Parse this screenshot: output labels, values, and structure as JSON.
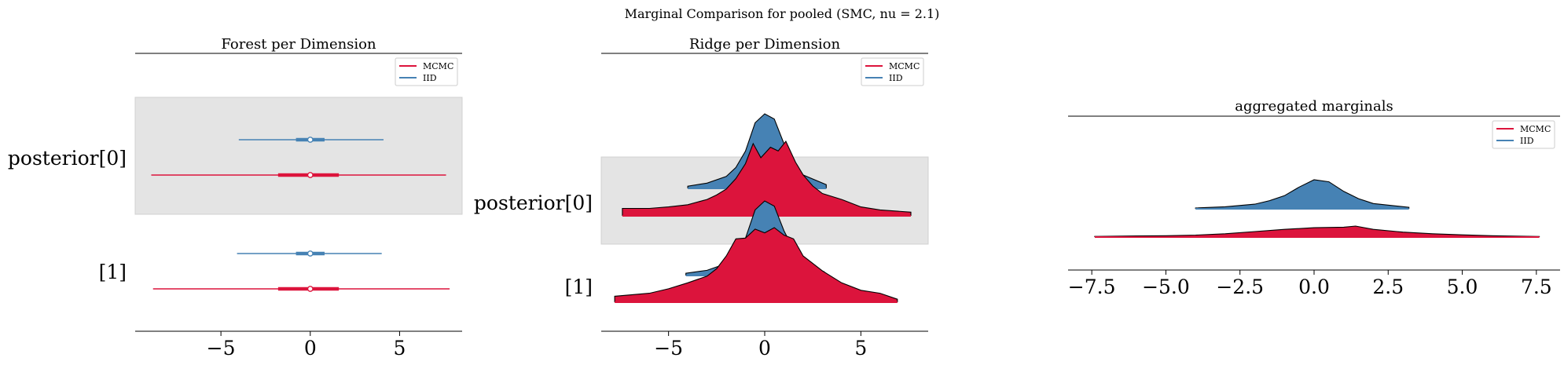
{
  "suptitle": "Marginal Comparison for pooled (SMC, nu = 2.1)",
  "colors": {
    "mcmc": "#dc143c",
    "iid": "#4682b4",
    "band": "#e4e4e4",
    "axis": "#000000"
  },
  "legend": {
    "mcmc": "MCMC",
    "iid": "IID"
  },
  "chart_data": [
    {
      "type": "forest",
      "title": "Forest per Dimension",
      "ylabels": [
        "posterior[0]",
        "[1]"
      ],
      "xlim": [
        -9.8,
        8.5
      ],
      "xticks": [
        -5,
        0,
        5
      ],
      "xtick_labels": [
        "−5",
        "0",
        "5"
      ],
      "legend_position": "top-right",
      "rows": [
        {
          "label": "posterior[0]",
          "iid": {
            "hdi": [
              -4.0,
              4.1
            ],
            "iqr": [
              -0.8,
              0.8
            ],
            "median": 0.0
          },
          "mcmc": {
            "hdi": [
              -8.9,
              7.6
            ],
            "iqr": [
              -1.8,
              1.6
            ],
            "median": 0.0
          }
        },
        {
          "label": "[1]",
          "iid": {
            "hdi": [
              -4.1,
              4.0
            ],
            "iqr": [
              -0.8,
              0.8
            ],
            "median": 0.0
          },
          "mcmc": {
            "hdi": [
              -8.8,
              7.8
            ],
            "iqr": [
              -1.8,
              1.6
            ],
            "median": 0.0
          }
        }
      ]
    },
    {
      "type": "ridge",
      "title": "Ridge per Dimension",
      "ylabels": [
        "posterior[0]",
        "[1]"
      ],
      "xlim": [
        -8.5,
        8.5
      ],
      "xticks": [
        -5,
        0,
        5
      ],
      "xtick_labels": [
        "−5",
        "0",
        "5"
      ],
      "legend_position": "top-right",
      "rows": [
        {
          "label": "posterior[0]",
          "iid": {
            "x": [
              -4.0,
              -3.0,
              -2.0,
              -1.5,
              -1.0,
              -0.5,
              0.0,
              0.5,
              1.0,
              1.5,
              2.0,
              3.2
            ],
            "density": [
              0.03,
              0.07,
              0.16,
              0.28,
              0.5,
              0.88,
              1.0,
              0.93,
              0.6,
              0.35,
              0.18,
              0.05
            ]
          },
          "mcmc": {
            "x": [
              -7.4,
              -6,
              -5,
              -4,
              -3,
              -2.5,
              -2,
              -1.5,
              -1,
              -0.6,
              -0.2,
              0.3,
              0.7,
              1.1,
              1.6,
              2,
              2.5,
              3,
              4,
              5,
              6,
              7.6
            ],
            "density": [
              0.1,
              0.1,
              0.12,
              0.15,
              0.22,
              0.28,
              0.36,
              0.5,
              0.7,
              0.97,
              0.78,
              0.92,
              0.87,
              1.0,
              0.72,
              0.55,
              0.4,
              0.3,
              0.22,
              0.12,
              0.08,
              0.05
            ]
          }
        },
        {
          "label": "[1]",
          "iid": {
            "x": [
              -4.1,
              -3.0,
              -2.0,
              -1.5,
              -1.0,
              -0.5,
              0.0,
              0.5,
              1.0,
              1.5,
              2.0,
              3.1
            ],
            "density": [
              0.03,
              0.07,
              0.16,
              0.28,
              0.5,
              0.88,
              1.0,
              0.93,
              0.6,
              0.35,
              0.18,
              0.05
            ]
          },
          "mcmc": {
            "x": [
              -7.8,
              -6,
              -5,
              -4,
              -3,
              -2.5,
              -2,
              -1.5,
              -1,
              -0.5,
              0,
              0.5,
              1,
              1.5,
              2,
              3,
              4,
              5,
              6,
              6.9
            ],
            "density": [
              0.08,
              0.12,
              0.18,
              0.26,
              0.35,
              0.45,
              0.62,
              0.85,
              0.86,
              0.98,
              0.93,
              1.0,
              0.9,
              0.85,
              0.62,
              0.42,
              0.26,
              0.16,
              0.12,
              0.04
            ]
          }
        }
      ]
    },
    {
      "type": "ridge",
      "title": "aggregated marginals",
      "xlim": [
        -8.3,
        8.3
      ],
      "xticks": [
        -7.5,
        -5.0,
        -2.5,
        0.0,
        2.5,
        5.0,
        7.5
      ],
      "xtick_labels": [
        "−7.5",
        "−5.0",
        "−2.5",
        "0.0",
        "2.5",
        "5.0",
        "7.5"
      ],
      "legend_position": "top-right",
      "rows": [
        {
          "label": "aggregated",
          "iid": {
            "x": [
              -4.0,
              -3.0,
              -2.0,
              -1.5,
              -1.0,
              -0.5,
              0.0,
              0.5,
              1.0,
              1.5,
              2.0,
              3.2
            ],
            "density": [
              0.03,
              0.07,
              0.16,
              0.28,
              0.45,
              0.75,
              1.0,
              0.93,
              0.6,
              0.35,
              0.18,
              0.05
            ]
          },
          "mcmc": {
            "x": [
              -7.4,
              -6,
              -5,
              -4,
              -3,
              -2,
              -1,
              0,
              1,
              1.4,
              2,
              3,
              4,
              5,
              6,
              7.6
            ],
            "density": [
              0.06,
              0.1,
              0.12,
              0.18,
              0.3,
              0.5,
              0.7,
              0.85,
              0.9,
              1.0,
              0.7,
              0.45,
              0.3,
              0.2,
              0.12,
              0.05
            ]
          }
        }
      ]
    }
  ]
}
